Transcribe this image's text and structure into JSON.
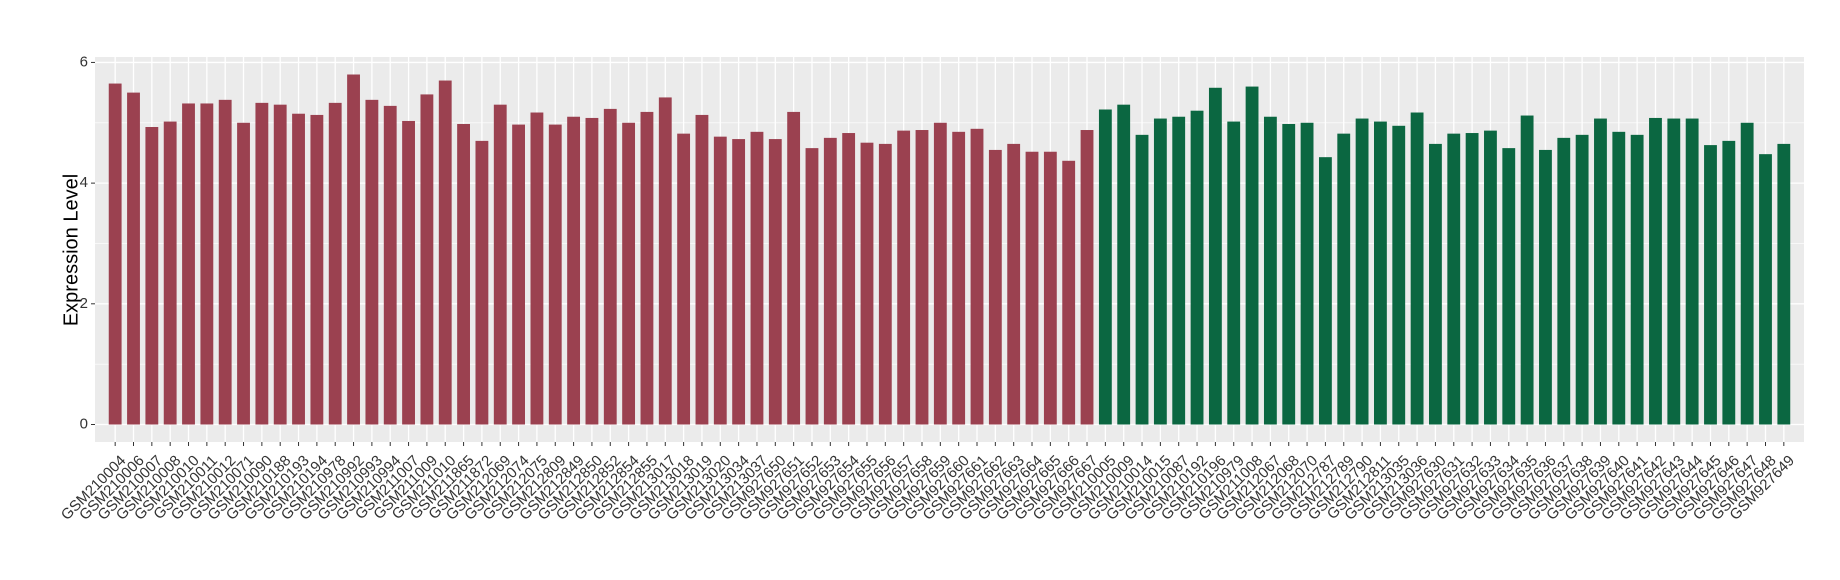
{
  "chart_data": {
    "type": "bar",
    "y_label": "Expression Level",
    "categories": [
      "GSM210004",
      "GSM210006",
      "GSM210007",
      "GSM210008",
      "GSM210010",
      "GSM210011",
      "GSM210012",
      "GSM210071",
      "GSM210090",
      "GSM210188",
      "GSM210193",
      "GSM210194",
      "GSM210978",
      "GSM210992",
      "GSM210993",
      "GSM210994",
      "GSM211007",
      "GSM211009",
      "GSM211010",
      "GSM211865",
      "GSM211872",
      "GSM212069",
      "GSM212074",
      "GSM212075",
      "GSM212809",
      "GSM212849",
      "GSM212850",
      "GSM212852",
      "GSM212854",
      "GSM212855",
      "GSM213017",
      "GSM213018",
      "GSM213019",
      "GSM213020",
      "GSM213034",
      "GSM213037",
      "GSM927650",
      "GSM927651",
      "GSM927652",
      "GSM927653",
      "GSM927654",
      "GSM927655",
      "GSM927656",
      "GSM927657",
      "GSM927658",
      "GSM927659",
      "GSM927660",
      "GSM927661",
      "GSM927662",
      "GSM927663",
      "GSM927664",
      "GSM927665",
      "GSM927666",
      "GSM927667",
      "GSM210005",
      "GSM210009",
      "GSM210014",
      "GSM210015",
      "GSM210087",
      "GSM210192",
      "GSM210196",
      "GSM210979",
      "GSM211008",
      "GSM212067",
      "GSM212068",
      "GSM212070",
      "GSM212787",
      "GSM212789",
      "GSM212790",
      "GSM212811",
      "GSM213035",
      "GSM213036",
      "GSM927630",
      "GSM927631",
      "GSM927632",
      "GSM927633",
      "GSM927634",
      "GSM927635",
      "GSM927636",
      "GSM927637",
      "GSM927638",
      "GSM927639",
      "GSM927640",
      "GSM927641",
      "GSM927642",
      "GSM927643",
      "GSM927644",
      "GSM927645",
      "GSM927646",
      "GSM927647",
      "GSM927648",
      "GSM927649"
    ],
    "series": [
      {
        "color": "#9b4150",
        "values": [
          5.65,
          5.5,
          4.93,
          5.02,
          5.32,
          5.32,
          5.38,
          5.0,
          5.33,
          5.3,
          5.15,
          5.13,
          5.33,
          5.8,
          5.38,
          5.28,
          5.03,
          5.47,
          5.7,
          4.98,
          4.7,
          5.3,
          4.97,
          5.17,
          4.97,
          5.1,
          5.08,
          5.23,
          5.0,
          5.18,
          5.42,
          4.82,
          5.13,
          4.77,
          4.73,
          4.85,
          4.73,
          5.18,
          4.58,
          4.75,
          4.83,
          4.67,
          4.65,
          4.87,
          4.88,
          5.0,
          4.85,
          4.9,
          4.55,
          4.65,
          4.52,
          4.52,
          4.37,
          4.88,
          null,
          null,
          null,
          null,
          null,
          null,
          null,
          null,
          null,
          null,
          null,
          null,
          null,
          null,
          null,
          null,
          null,
          null,
          null,
          null,
          null,
          null,
          null,
          null,
          null,
          null,
          null,
          null,
          null,
          null,
          null,
          null,
          null,
          null,
          null,
          null,
          null,
          null
        ]
      },
      {
        "color": "#0b6741",
        "values": [
          null,
          null,
          null,
          null,
          null,
          null,
          null,
          null,
          null,
          null,
          null,
          null,
          null,
          null,
          null,
          null,
          null,
          null,
          null,
          null,
          null,
          null,
          null,
          null,
          null,
          null,
          null,
          null,
          null,
          null,
          null,
          null,
          null,
          null,
          null,
          null,
          null,
          null,
          null,
          null,
          null,
          null,
          null,
          null,
          null,
          null,
          null,
          null,
          null,
          null,
          null,
          null,
          null,
          null,
          5.22,
          5.3,
          4.8,
          5.07,
          5.1,
          5.2,
          5.58,
          5.02,
          5.6,
          5.1,
          4.98,
          5.0,
          4.43,
          4.82,
          5.07,
          5.02,
          4.95,
          5.17,
          4.65,
          4.82,
          4.83,
          4.87,
          4.58,
          5.12,
          4.55,
          4.75,
          4.8,
          5.07,
          4.85,
          4.8,
          5.08,
          5.07,
          5.07,
          4.63,
          4.7,
          5.0,
          4.48,
          4.65
        ]
      }
    ],
    "ylim": [
      -0.29,
      6.09
    ],
    "yticks": [
      0,
      2,
      4,
      6
    ],
    "grid": true,
    "background": "#ebebeb"
  }
}
